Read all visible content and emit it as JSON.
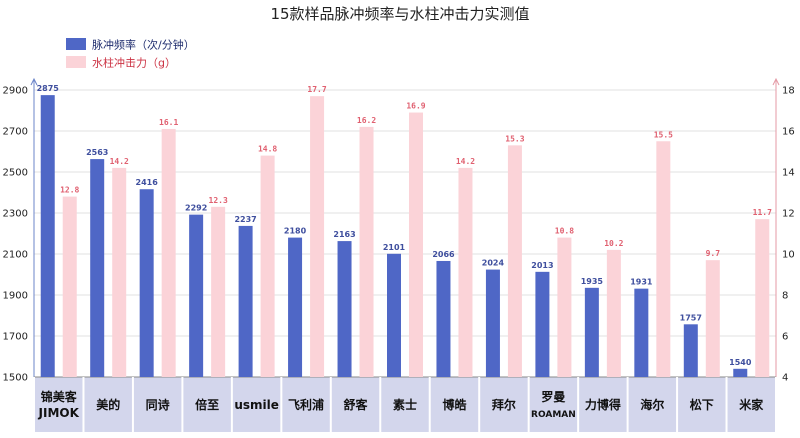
{
  "chart_data": {
    "type": "bar",
    "title": "15款样品脉冲频率与水柱冲击力实测值",
    "categories": [
      [
        "锦美客",
        "JIMOK"
      ],
      [
        "美的"
      ],
      [
        "同诗"
      ],
      [
        "倍至"
      ],
      [
        "usmile"
      ],
      [
        "飞利浦"
      ],
      [
        "舒客"
      ],
      [
        "素士"
      ],
      [
        "博皓"
      ],
      [
        "拜尔"
      ],
      [
        "罗曼",
        "ROAMAN"
      ],
      [
        "力博得"
      ],
      [
        "海尔"
      ],
      [
        "松下"
      ],
      [
        "米家"
      ]
    ],
    "series": [
      {
        "name": "脉冲频率（次/分钟）",
        "axis": "left",
        "color": "#4f67c6",
        "values": [
          2875,
          2563,
          2416,
          2292,
          2237,
          2180,
          2163,
          2101,
          2066,
          2024,
          2013,
          1935,
          1931,
          1757,
          1540
        ],
        "labels": [
          "2875",
          "2563",
          "2416",
          "2292",
          "2237",
          "2180",
          "2163",
          "2101",
          "2066",
          "2024",
          "2013",
          "1935",
          "1931",
          "1757",
          "1540"
        ]
      },
      {
        "name": "水柱冲击力（g）",
        "axis": "right",
        "color": "#fbd3d8",
        "values": [
          12.8,
          14.2,
          16.1,
          12.3,
          14.8,
          17.7,
          16.2,
          16.9,
          14.2,
          15.3,
          10.8,
          10.2,
          15.5,
          9.7,
          11.7
        ],
        "labels": [
          "12.8",
          "14.2",
          "16.1",
          "12.3",
          "14.8",
          "17.7",
          "16.2",
          "16.9",
          "14.2",
          "15.3",
          "10.8",
          "10.2",
          "15.5",
          "9.7",
          "11.7"
        ]
      }
    ],
    "y_left": {
      "min": 1500,
      "max": 2900,
      "ticks": [
        "1500",
        "1700",
        "1900",
        "2100",
        "2300",
        "2500",
        "2700",
        "2900"
      ]
    },
    "y_right": {
      "min": 4,
      "max": 18,
      "ticks": [
        "4",
        "6",
        "8",
        "10",
        "12",
        "14",
        "16",
        "18"
      ]
    },
    "legend_position": "top-left",
    "grid": true,
    "category_band_color": "#d3d6ec"
  }
}
